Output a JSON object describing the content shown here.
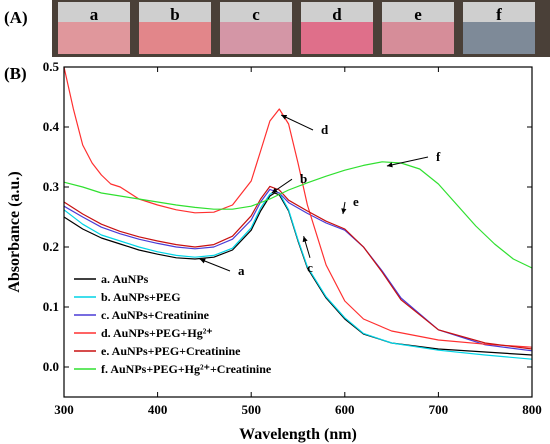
{
  "panels": {
    "a_label": "(A)",
    "b_label": "(B)"
  },
  "vials": [
    {
      "letter": "a",
      "color": "#e0979c"
    },
    {
      "letter": "b",
      "color": "#e2868a"
    },
    {
      "letter": "c",
      "color": "#d496a6"
    },
    {
      "letter": "d",
      "color": "#df6f8a"
    },
    {
      "letter": "e",
      "color": "#d68d99"
    },
    {
      "letter": "f",
      "color": "#7e8a98"
    }
  ],
  "chart_data": {
    "type": "line",
    "xlabel": "Wavelength (nm)",
    "ylabel": "Absorbance (a.u.)",
    "xlim": [
      300,
      800
    ],
    "ylim": [
      -0.05,
      0.5
    ],
    "xticks": [
      300,
      400,
      500,
      600,
      700,
      800
    ],
    "yticks": [
      0.0,
      0.1,
      0.2,
      0.3,
      0.4,
      0.5
    ],
    "grid": false,
    "legend_position": "bottom-left",
    "series": [
      {
        "name": "a. AuNPs",
        "letter": "a",
        "color": "#000000",
        "x": [
          300,
          320,
          340,
          360,
          380,
          400,
          420,
          440,
          460,
          480,
          500,
          510,
          520,
          525,
          530,
          540,
          550,
          560,
          580,
          600,
          620,
          650,
          700,
          750,
          800
        ],
        "y": [
          0.25,
          0.23,
          0.215,
          0.205,
          0.195,
          0.188,
          0.182,
          0.18,
          0.183,
          0.195,
          0.228,
          0.26,
          0.285,
          0.29,
          0.287,
          0.26,
          0.21,
          0.165,
          0.115,
          0.08,
          0.055,
          0.04,
          0.03,
          0.025,
          0.02
        ]
      },
      {
        "name": "b. AuNPs+PEG",
        "letter": "b",
        "color": "#00d4e6",
        "x": [
          300,
          320,
          340,
          360,
          380,
          400,
          420,
          440,
          460,
          480,
          500,
          510,
          520,
          525,
          530,
          540,
          550,
          560,
          580,
          600,
          620,
          650,
          700,
          750,
          800
        ],
        "y": [
          0.262,
          0.238,
          0.22,
          0.21,
          0.2,
          0.192,
          0.186,
          0.183,
          0.186,
          0.198,
          0.232,
          0.265,
          0.288,
          0.293,
          0.29,
          0.262,
          0.212,
          0.167,
          0.117,
          0.082,
          0.056,
          0.04,
          0.028,
          0.02,
          0.013
        ]
      },
      {
        "name": "c. AuNPs+Creatinine",
        "letter": "c",
        "color": "#4a3bd6",
        "x": [
          300,
          320,
          340,
          360,
          380,
          400,
          420,
          440,
          460,
          480,
          500,
          510,
          520,
          530,
          540,
          560,
          580,
          600,
          620,
          640,
          660,
          700,
          750,
          800
        ],
        "y": [
          0.268,
          0.25,
          0.233,
          0.222,
          0.213,
          0.206,
          0.2,
          0.197,
          0.2,
          0.213,
          0.245,
          0.275,
          0.296,
          0.29,
          0.274,
          0.256,
          0.24,
          0.228,
          0.2,
          0.16,
          0.115,
          0.062,
          0.037,
          0.027
        ]
      },
      {
        "name": "d. AuNPs+PEG+Hg²⁺",
        "letter": "d",
        "color": "#ff3030",
        "x": [
          300,
          310,
          320,
          330,
          340,
          350,
          360,
          380,
          400,
          420,
          440,
          460,
          480,
          500,
          510,
          520,
          530,
          540,
          550,
          560,
          580,
          600,
          620,
          650,
          700,
          750,
          800
        ],
        "y": [
          0.5,
          0.43,
          0.37,
          0.34,
          0.32,
          0.305,
          0.3,
          0.28,
          0.27,
          0.262,
          0.257,
          0.258,
          0.27,
          0.31,
          0.36,
          0.41,
          0.43,
          0.405,
          0.34,
          0.27,
          0.17,
          0.11,
          0.08,
          0.06,
          0.045,
          0.038,
          0.033
        ]
      },
      {
        "name": "e. AuNPs+PEG+Creatinine",
        "letter": "e",
        "color": "#c81010",
        "x": [
          300,
          320,
          340,
          360,
          380,
          400,
          420,
          440,
          460,
          480,
          500,
          510,
          520,
          530,
          540,
          560,
          580,
          600,
          620,
          640,
          660,
          700,
          750,
          800
        ],
        "y": [
          0.275,
          0.255,
          0.238,
          0.226,
          0.217,
          0.21,
          0.204,
          0.2,
          0.204,
          0.218,
          0.252,
          0.28,
          0.301,
          0.295,
          0.278,
          0.26,
          0.243,
          0.23,
          0.2,
          0.158,
          0.112,
          0.062,
          0.04,
          0.03
        ]
      },
      {
        "name": "f. AuNPs+PEG+Hg²⁺+Creatinine",
        "letter": "f",
        "color": "#30e030",
        "x": [
          300,
          320,
          340,
          360,
          380,
          400,
          420,
          440,
          460,
          480,
          500,
          520,
          540,
          560,
          580,
          600,
          620,
          640,
          660,
          680,
          700,
          720,
          740,
          760,
          780,
          800
        ],
        "y": [
          0.308,
          0.3,
          0.29,
          0.285,
          0.28,
          0.275,
          0.27,
          0.266,
          0.263,
          0.263,
          0.268,
          0.28,
          0.295,
          0.307,
          0.318,
          0.328,
          0.336,
          0.342,
          0.34,
          0.33,
          0.305,
          0.27,
          0.235,
          0.205,
          0.18,
          0.165
        ]
      }
    ],
    "annotations": [
      {
        "text": "a",
        "series": "a"
      },
      {
        "text": "b",
        "series": "b"
      },
      {
        "text": "c",
        "series": "c"
      },
      {
        "text": "d",
        "series": "d"
      },
      {
        "text": "e",
        "series": "e"
      },
      {
        "text": "f",
        "series": "f"
      }
    ]
  }
}
